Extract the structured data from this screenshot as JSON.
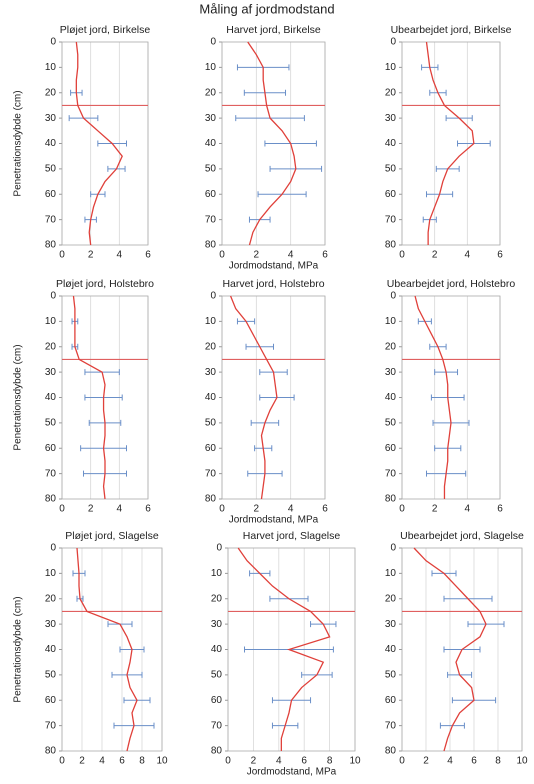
{
  "title": "Måling af jordmodstand",
  "chart_data": [
    {
      "type": "line",
      "title": "Pløjet jord, Birkelse",
      "ylabel": "Penetrationsdybde (cm)",
      "y": [
        0,
        5,
        10,
        15,
        20,
        25,
        30,
        35,
        40,
        45,
        50,
        55,
        60,
        65,
        70,
        75,
        80
      ],
      "values": [
        1.0,
        1.1,
        1.1,
        1.0,
        1.0,
        1.1,
        1.5,
        2.5,
        3.5,
        4.2,
        3.8,
        3.0,
        2.5,
        2.2,
        2.0,
        1.9,
        2.0
      ],
      "errors": [
        null,
        null,
        null,
        null,
        0.4,
        null,
        1.0,
        null,
        1.0,
        null,
        0.6,
        null,
        0.5,
        null,
        0.4,
        null,
        null
      ],
      "xlim": [
        0,
        6
      ],
      "xticks": [
        0,
        2,
        4,
        6
      ],
      "ylim": [
        0,
        80
      ],
      "yticks": [
        0,
        10,
        20,
        30,
        40,
        50,
        60,
        70,
        80
      ],
      "y_inverted": true,
      "reference_y": 25,
      "color": "#e0403a",
      "error_color": "#6a8fc8",
      "reference_color": "#e06060",
      "grid": true
    },
    {
      "type": "line",
      "title": "Harvet jord, Birkelse",
      "xlabel": "Jordmodstand, MPa",
      "y": [
        0,
        5,
        10,
        15,
        20,
        25,
        30,
        35,
        40,
        45,
        50,
        55,
        60,
        65,
        70,
        75,
        80
      ],
      "values": [
        1.5,
        2.0,
        2.4,
        2.4,
        2.5,
        2.6,
        2.8,
        3.5,
        4.0,
        4.2,
        4.3,
        4.0,
        3.5,
        2.8,
        2.2,
        1.8,
        1.6
      ],
      "errors": [
        null,
        null,
        1.5,
        null,
        1.2,
        null,
        2.0,
        null,
        1.5,
        null,
        1.5,
        null,
        1.4,
        null,
        0.6,
        null,
        null
      ],
      "xlim": [
        0,
        6
      ],
      "xticks": [
        0,
        2,
        4,
        6
      ],
      "ylim": [
        0,
        80
      ],
      "yticks": [
        0,
        10,
        20,
        30,
        40,
        50,
        60,
        70,
        80
      ],
      "y_inverted": true,
      "reference_y": 25,
      "color": "#e0403a",
      "error_color": "#6a8fc8",
      "reference_color": "#e06060",
      "grid": true
    },
    {
      "type": "line",
      "title": "Ubearbejdet jord, Birkelse",
      "y": [
        0,
        5,
        10,
        15,
        20,
        25,
        30,
        35,
        40,
        45,
        50,
        55,
        60,
        65,
        70,
        75,
        80
      ],
      "values": [
        1.5,
        1.6,
        1.7,
        1.9,
        2.2,
        2.6,
        3.5,
        4.3,
        4.4,
        3.5,
        2.8,
        2.5,
        2.3,
        2.0,
        1.7,
        1.6,
        1.6
      ],
      "errors": [
        null,
        null,
        0.5,
        null,
        0.5,
        null,
        0.8,
        null,
        1.0,
        null,
        0.7,
        null,
        0.8,
        null,
        0.4,
        null,
        null
      ],
      "xlim": [
        0,
        6
      ],
      "xticks": [
        0,
        2,
        4,
        6
      ],
      "ylim": [
        0,
        80
      ],
      "yticks": [
        0,
        10,
        20,
        30,
        40,
        50,
        60,
        70,
        80
      ],
      "y_inverted": true,
      "reference_y": 25,
      "color": "#e0403a",
      "error_color": "#6a8fc8",
      "reference_color": "#e06060",
      "grid": true
    },
    {
      "type": "line",
      "title": "Pløjet jord, Holstebro",
      "ylabel": "Penetrationsdybde (cm)",
      "y": [
        0,
        5,
        10,
        15,
        20,
        25,
        30,
        35,
        40,
        45,
        50,
        55,
        60,
        65,
        70,
        75,
        80
      ],
      "values": [
        0.8,
        0.9,
        0.9,
        0.9,
        0.9,
        1.2,
        2.8,
        3.0,
        2.9,
        2.9,
        3.0,
        3.0,
        2.9,
        3.0,
        3.0,
        2.9,
        3.0
      ],
      "errors": [
        null,
        null,
        0.2,
        null,
        0.2,
        null,
        1.2,
        null,
        1.3,
        null,
        1.1,
        null,
        1.6,
        null,
        1.5,
        null,
        null
      ],
      "xlim": [
        0,
        6
      ],
      "xticks": [
        0,
        2,
        4,
        6
      ],
      "ylim": [
        0,
        80
      ],
      "yticks": [
        0,
        10,
        20,
        30,
        40,
        50,
        60,
        70,
        80
      ],
      "y_inverted": true,
      "reference_y": 25,
      "color": "#e0403a",
      "error_color": "#6a8fc8",
      "reference_color": "#e06060",
      "grid": true
    },
    {
      "type": "line",
      "title": "Harvet jord, Holstebro",
      "xlabel": "Jordmodstand, MPa",
      "y": [
        0,
        5,
        10,
        15,
        20,
        25,
        30,
        35,
        40,
        45,
        50,
        55,
        60,
        65,
        70,
        75,
        80
      ],
      "values": [
        0.5,
        0.8,
        1.4,
        1.8,
        2.2,
        2.6,
        3.0,
        3.1,
        3.2,
        2.8,
        2.5,
        2.3,
        2.4,
        2.5,
        2.5,
        2.4,
        2.3
      ],
      "errors": [
        null,
        null,
        0.5,
        null,
        0.8,
        null,
        0.8,
        null,
        1.0,
        null,
        0.8,
        null,
        0.5,
        null,
        1.0,
        null,
        null
      ],
      "xlim": [
        0,
        6
      ],
      "xticks": [
        0,
        2,
        4,
        6
      ],
      "ylim": [
        0,
        80
      ],
      "yticks": [
        0,
        10,
        20,
        30,
        40,
        50,
        60,
        70,
        80
      ],
      "y_inverted": true,
      "reference_y": 25,
      "color": "#e0403a",
      "error_color": "#6a8fc8",
      "reference_color": "#e06060",
      "grid": true
    },
    {
      "type": "line",
      "title": "Ubearbejdet jord, Holstebro",
      "y": [
        0,
        5,
        10,
        15,
        20,
        25,
        30,
        35,
        40,
        45,
        50,
        55,
        60,
        65,
        70,
        75,
        80
      ],
      "values": [
        0.8,
        1.0,
        1.4,
        1.8,
        2.2,
        2.5,
        2.7,
        2.8,
        2.8,
        2.9,
        3.0,
        2.9,
        2.8,
        2.8,
        2.7,
        2.6,
        2.6
      ],
      "errors": [
        null,
        null,
        0.4,
        null,
        0.5,
        null,
        0.7,
        null,
        1.0,
        null,
        1.1,
        null,
        0.8,
        null,
        1.2,
        null,
        null
      ],
      "xlim": [
        0,
        6
      ],
      "xticks": [
        0,
        2,
        4,
        6
      ],
      "ylim": [
        0,
        80
      ],
      "yticks": [
        0,
        10,
        20,
        30,
        40,
        50,
        60,
        70,
        80
      ],
      "y_inverted": true,
      "reference_y": 25,
      "color": "#e0403a",
      "error_color": "#6a8fc8",
      "reference_color": "#e06060",
      "grid": true
    },
    {
      "type": "line",
      "title": "Pløjet jord, Slagelse",
      "ylabel": "Penetrationsdybde (cm)",
      "y": [
        0,
        5,
        10,
        15,
        20,
        25,
        30,
        35,
        40,
        45,
        50,
        55,
        60,
        65,
        70,
        75,
        80
      ],
      "values": [
        1.5,
        1.6,
        1.7,
        1.7,
        1.8,
        2.5,
        5.8,
        6.5,
        7.0,
        6.8,
        6.5,
        6.8,
        7.5,
        7.0,
        7.2,
        6.8,
        6.5
      ],
      "errors": [
        null,
        null,
        0.6,
        null,
        0.3,
        null,
        1.2,
        null,
        1.2,
        null,
        1.5,
        null,
        1.3,
        null,
        2.0,
        null,
        null
      ],
      "xlim": [
        0,
        10
      ],
      "xticks": [
        0,
        2,
        4,
        6,
        8,
        10
      ],
      "ylim": [
        0,
        80
      ],
      "yticks": [
        0,
        10,
        20,
        30,
        40,
        50,
        60,
        70,
        80
      ],
      "y_inverted": true,
      "reference_y": 25,
      "color": "#e0403a",
      "error_color": "#6a8fc8",
      "reference_color": "#e06060",
      "grid": true
    },
    {
      "type": "line",
      "title": "Harvet jord, Slagelse",
      "xlabel": "Jordmodstand, MPa",
      "y": [
        0,
        5,
        10,
        15,
        20,
        25,
        30,
        35,
        40,
        45,
        50,
        55,
        60,
        65,
        70,
        75,
        80
      ],
      "values": [
        0.8,
        1.5,
        2.5,
        3.5,
        4.8,
        6.5,
        7.5,
        8.0,
        4.8,
        7.5,
        7.0,
        5.8,
        5.0,
        4.8,
        4.5,
        4.2,
        4.2
      ],
      "errors": [
        null,
        null,
        0.8,
        null,
        1.5,
        null,
        1.0,
        null,
        3.5,
        null,
        1.2,
        null,
        1.5,
        null,
        1.0,
        null,
        null
      ],
      "xlim": [
        0,
        10
      ],
      "xticks": [
        0,
        2,
        4,
        6,
        8,
        10
      ],
      "ylim": [
        0,
        80
      ],
      "yticks": [
        0,
        10,
        20,
        30,
        40,
        50,
        60,
        70,
        80
      ],
      "y_inverted": true,
      "reference_y": 25,
      "color": "#e0403a",
      "error_color": "#6a8fc8",
      "reference_color": "#e06060",
      "grid": true
    },
    {
      "type": "line",
      "title": "Ubearbejdet jord, Slagelse",
      "y": [
        0,
        5,
        10,
        15,
        20,
        25,
        30,
        35,
        40,
        45,
        50,
        55,
        60,
        65,
        70,
        75,
        80
      ],
      "values": [
        1.0,
        2.0,
        3.5,
        4.5,
        5.5,
        6.5,
        7.0,
        6.5,
        5.0,
        4.5,
        4.8,
        5.8,
        6.0,
        4.8,
        4.2,
        3.8,
        3.5
      ],
      "errors": [
        null,
        null,
        1.0,
        null,
        2.0,
        null,
        1.5,
        null,
        1.5,
        null,
        1.0,
        null,
        1.8,
        null,
        1.0,
        null,
        null
      ],
      "xlim": [
        0,
        10
      ],
      "xticks": [
        0,
        2,
        4,
        6,
        8,
        10
      ],
      "ylim": [
        0,
        80
      ],
      "yticks": [
        0,
        10,
        20,
        30,
        40,
        50,
        60,
        70,
        80
      ],
      "y_inverted": true,
      "reference_y": 25,
      "color": "#e0403a",
      "error_color": "#6a8fc8",
      "reference_color": "#e06060",
      "grid": true
    }
  ]
}
